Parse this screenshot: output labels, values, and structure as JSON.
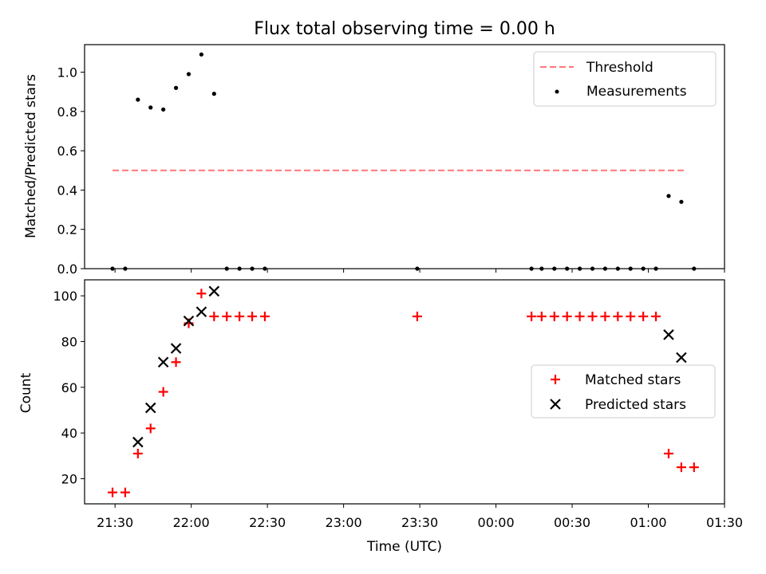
{
  "chart_data": [
    {
      "type": "scatter",
      "title": "Flux total observing time = 0.00 h",
      "xlabel": "",
      "ylabel": "Matched/Predicted stars",
      "xlim": [
        "21:18",
        "01:30"
      ],
      "ylim": [
        0,
        1.14
      ],
      "yticks": [
        0.0,
        0.2,
        0.4,
        0.6,
        0.8,
        1.0
      ],
      "ytick_labels": [
        "0.0",
        "0.2",
        "0.4",
        "0.6",
        "0.8",
        "1.0"
      ],
      "legend_position": "top-right",
      "series": [
        {
          "name": "Threshold",
          "style": "dashed-line",
          "color": "#ff7777",
          "x": [
            "21:29",
            "01:14"
          ],
          "y": [
            0.5,
            0.5
          ]
        },
        {
          "name": "Measurements",
          "style": "dot",
          "color": "#000000",
          "x": [
            "21:29",
            "21:34",
            "21:39",
            "21:44",
            "21:49",
            "21:54",
            "21:59",
            "22:04",
            "22:09",
            "22:14",
            "22:19",
            "22:24",
            "22:29",
            "23:29",
            "00:14",
            "00:18",
            "00:23",
            "00:28",
            "00:33",
            "00:38",
            "00:43",
            "00:48",
            "00:53",
            "00:58",
            "01:03",
            "01:08",
            "01:13",
            "01:18"
          ],
          "y": [
            0,
            0,
            0.86,
            0.82,
            0.81,
            0.92,
            0.99,
            1.09,
            0.89,
            0,
            0,
            0,
            0,
            0,
            0,
            0,
            0,
            0,
            0,
            0,
            0,
            0,
            0,
            0,
            0,
            0.37,
            0.34,
            0
          ]
        }
      ]
    },
    {
      "type": "scatter",
      "title": "",
      "xlabel": "Time (UTC)",
      "ylabel": "Count",
      "xlim": [
        "21:18",
        "01:30"
      ],
      "ylim": [
        9,
        107
      ],
      "yticks": [
        20,
        40,
        60,
        80,
        100
      ],
      "ytick_labels": [
        "20",
        "40",
        "60",
        "80",
        "100"
      ],
      "xticks": [
        "21:30",
        "22:00",
        "22:30",
        "23:00",
        "23:30",
        "00:00",
        "00:30",
        "01:00",
        "01:30"
      ],
      "legend_position": "center-right",
      "series": [
        {
          "name": "Matched stars",
          "marker": "+",
          "color": "#ff0000",
          "x": [
            "21:29",
            "21:34",
            "21:39",
            "21:44",
            "21:49",
            "21:54",
            "21:59",
            "22:04",
            "22:09",
            "22:14",
            "22:19",
            "22:24",
            "22:29",
            "23:29",
            "00:14",
            "00:18",
            "00:23",
            "00:28",
            "00:33",
            "00:38",
            "00:43",
            "00:48",
            "00:53",
            "00:58",
            "01:03",
            "01:08",
            "01:13",
            "01:18"
          ],
          "y": [
            14,
            14,
            31,
            42,
            58,
            71,
            88,
            101,
            91,
            91,
            91,
            91,
            91,
            91,
            91,
            91,
            91,
            91,
            91,
            91,
            91,
            91,
            91,
            91,
            91,
            31,
            25,
            25
          ]
        },
        {
          "name": "Predicted stars",
          "marker": "x",
          "color": "#000000",
          "x": [
            "21:39",
            "21:44",
            "21:49",
            "21:54",
            "21:59",
            "22:04",
            "22:09",
            "01:08",
            "01:13"
          ],
          "y": [
            36,
            51,
            71,
            77,
            89,
            93,
            102,
            83,
            73
          ]
        }
      ]
    }
  ]
}
